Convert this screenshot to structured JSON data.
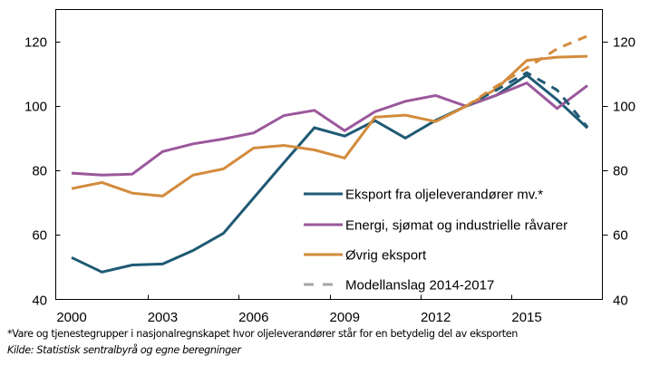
{
  "chart_data": {
    "type": "line",
    "title": "",
    "xlabel": "",
    "ylabel": "",
    "ylim": [
      40,
      130
    ],
    "y_ticks": [
      40,
      60,
      80,
      100,
      120
    ],
    "y_tick_labels": [
      "40",
      "60",
      "80",
      "100",
      "120"
    ],
    "right_axis_ticks": [
      40,
      60,
      80,
      100,
      120
    ],
    "right_axis_tick_labels": [
      "40",
      "60",
      "80",
      "100",
      "120"
    ],
    "x": [
      2000,
      2001,
      2002,
      2003,
      2004,
      2005,
      2006,
      2007,
      2008,
      2009,
      2010,
      2011,
      2012,
      2013,
      2014,
      2015,
      2016,
      2017
    ],
    "x_tick_labels": [
      "2000",
      "2003",
      "2006",
      "2009",
      "2012",
      "2015"
    ],
    "x_tick_years": [
      2000,
      2003,
      2006,
      2009,
      2012,
      2015
    ],
    "grid": false,
    "legend_position": "lower-right",
    "series": [
      {
        "name": "Eksport fra oljeleverandører mv.*",
        "color": "#1f5a74",
        "style": "solid",
        "values": [
          53.0,
          48.5,
          50.7,
          51.0,
          55.2,
          60.5,
          71.5,
          82.5,
          93.3,
          90.7,
          95.5,
          90.1,
          95.6,
          100.0,
          103.4,
          109.6,
          102.0,
          93.2
        ]
      },
      {
        "name": "Energi, sjømat og industrielle råvarer",
        "color": "#9b589b",
        "style": "solid",
        "values": [
          79.2,
          78.6,
          78.9,
          85.9,
          88.3,
          89.8,
          91.7,
          97.1,
          98.7,
          92.4,
          98.3,
          101.5,
          103.3,
          100.0,
          103.4,
          107.2,
          99.3,
          106.4
        ]
      },
      {
        "name": "Øvrig eksport",
        "color": "#d38b3c",
        "style": "solid",
        "values": [
          74.4,
          76.3,
          73.0,
          72.1,
          78.6,
          80.5,
          87.0,
          87.8,
          86.4,
          83.9,
          96.6,
          97.2,
          95.2,
          100.0,
          105.4,
          114.2,
          115.2,
          115.5
        ]
      },
      {
        "name": "Modellanslag 2014-2017 (Eksport fra oljeleverandører mv.*)",
        "color": "#1f5a74",
        "style": "dashed",
        "x": [
          2013,
          2014,
          2015,
          2016,
          2017
        ],
        "values": [
          100.0,
          105.0,
          110.4,
          105.0,
          93.5
        ]
      },
      {
        "name": "Modellanslag 2014-2017 (Øvrig eksport)",
        "color": "#d38b3c",
        "style": "dashed",
        "x": [
          2013,
          2014,
          2015,
          2016,
          2017
        ],
        "values": [
          100.0,
          106.2,
          111.9,
          117.8,
          121.8
        ]
      }
    ],
    "legend": [
      {
        "label": "Eksport fra oljeleverandører mv.*",
        "color": "#1f5a74",
        "style": "solid"
      },
      {
        "label": "Energi, sjømat og industrielle råvarer",
        "color": "#9b589b",
        "style": "solid"
      },
      {
        "label": "Øvrig eksport",
        "color": "#d38b3c",
        "style": "solid"
      },
      {
        "label": "Modellanslag 2014-2017",
        "color": "#a6a6a6",
        "style": "dashed"
      }
    ]
  },
  "footnote": "*Vare og tjenestegrupper i nasjonalregnskapet hvor oljeleverandører står for en betydelig del av eksporten",
  "source": "Kilde: Statistisk sentralbyrå og egne beregninger"
}
